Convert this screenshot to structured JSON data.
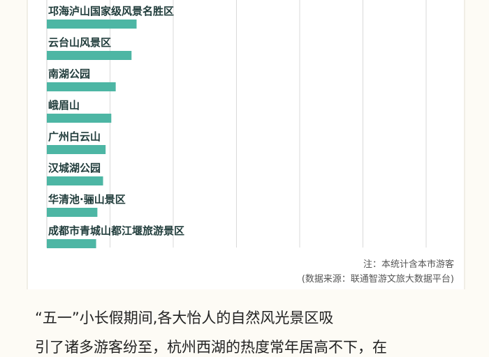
{
  "chart_data": {
    "type": "bar",
    "orientation": "horizontal",
    "categories": [
      "邛海泸山国家级风景名胜区",
      "云台山风景区",
      "南湖公园",
      "峨眉山",
      "广州白云山",
      "汉城湖公园",
      "华清池·骊山景区",
      "成都市青城山都江堰旅游景区"
    ],
    "values": [
      142,
      134,
      109,
      102,
      93,
      89,
      80,
      78
    ],
    "xlim": [
      0,
      600
    ],
    "grid": true,
    "bar_color": "#4db6a4",
    "label_color": "#1f3b3a",
    "grid_color": "#d9d9d9"
  },
  "notes": {
    "line1": "注：本统计含本市游客",
    "line2": "(数据来源：联通智游文旅大数据平台)"
  },
  "body_text": {
    "line1": "“五一”小长假期间,各大怡人的自然风光景区吸",
    "line2": "引了诸多游客纷至，杭州西湖的热度常年居高不下，在"
  }
}
